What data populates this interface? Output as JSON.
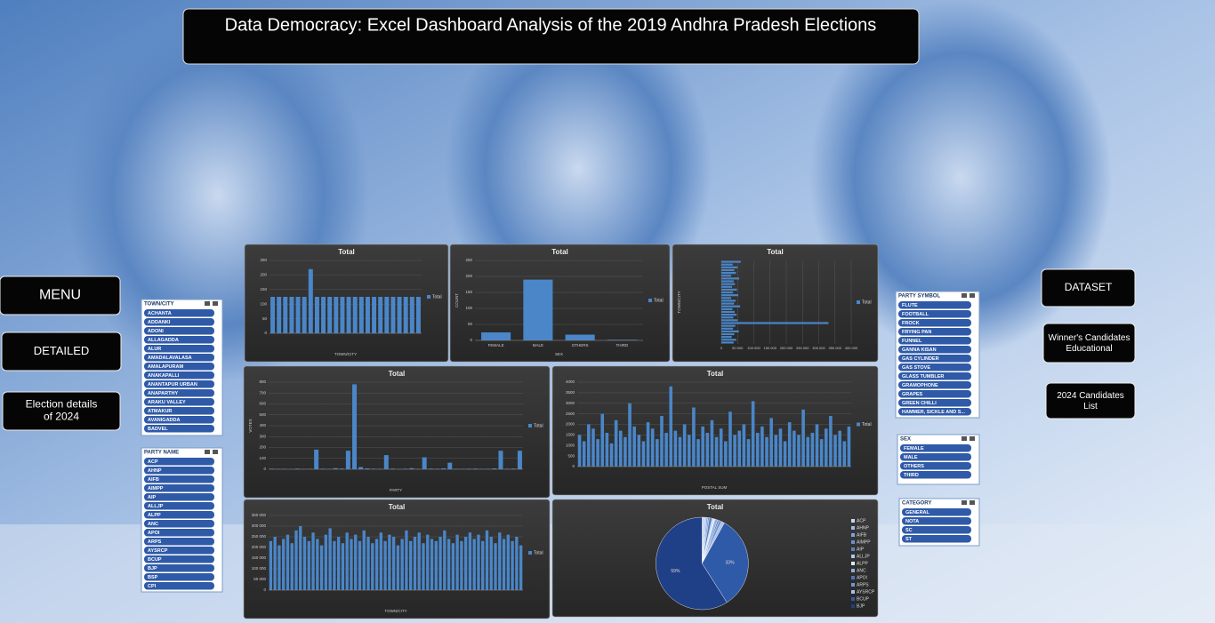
{
  "header": {
    "title": "Data Democracy: Excel Dashboard Analysis of the 2019 Andhra Pradesh Elections"
  },
  "buttons": [
    {
      "label": "MENU"
    },
    {
      "label": "DETAILED"
    },
    {
      "label": "Election details of 2024"
    },
    {
      "label": "DATASET"
    },
    {
      "label": "Winner's Candidates Educational"
    },
    {
      "label": "2024 Candidates List"
    }
  ],
  "slicers": [
    {
      "title": "TOWN/CITY",
      "items": [
        "ACHANTA",
        "ADDANKI",
        "ADONI",
        "ALLAGADDA",
        "ALUR",
        "AMADALAVALASA",
        "AMALAPURAM",
        "ANAKAPALLI",
        "ANANTAPUR URBAN",
        "ANAPARTHY",
        "ARAKU VALLEY",
        "ATMAKUR",
        "AVANIGADDA",
        "BADVEL"
      ]
    },
    {
      "title": "PARTY NAME",
      "items": [
        "ACP",
        "AHNP",
        "AIFB",
        "AIMPP",
        "AIP",
        "ALLJP",
        "ALPP",
        "ANC",
        "APOI",
        "ARPS",
        "AYSRCP",
        "BCUP",
        "BJP",
        "BSP",
        "CPI"
      ]
    },
    {
      "title": "PARTY SYMBOL",
      "items": [
        "FLUTE",
        "FOOTBALL",
        "FROCK",
        "FRYING PAN",
        "FUNNEL",
        "GANNA KISAN",
        "GAS CYLINDER",
        "GAS STOVE",
        "GLASS TUMBLER",
        "GRAMOPHONE",
        "GRAPES",
        "GREEN CHILLI",
        "HAMMER, SICKLE AND S..."
      ]
    },
    {
      "title": "SEX",
      "items": [
        "FEMALE",
        "MALE",
        "OTHERS",
        "THIRD"
      ]
    },
    {
      "title": "CATEGORY",
      "items": [
        "GENERAL",
        "NOTA",
        "SC",
        "ST"
      ]
    }
  ],
  "chart_data": [
    {
      "type": "bar",
      "title": "Total",
      "xlabel": "TOWN/CITY",
      "series": [
        {
          "name": "Total",
          "color": "#4a86c8",
          "values": [
            125,
            125,
            125,
            125,
            125,
            125,
            220,
            125,
            125,
            125,
            125,
            125,
            125,
            125,
            125,
            125,
            125,
            125,
            125,
            125,
            125,
            125,
            125,
            125
          ]
        }
      ],
      "ylim": [
        0,
        250
      ],
      "yticks": [
        0,
        50,
        100,
        150,
        200,
        250
      ],
      "grid": true
    },
    {
      "type": "bar",
      "title": "Total",
      "xlabel": "SEX",
      "ylabel": "COUNT",
      "categories": [
        "FEMALE",
        "MALE",
        "OTHERS",
        "THIRD"
      ],
      "series": [
        {
          "name": "Total",
          "color": "#4a86c8",
          "values": [
            25,
            190,
            18,
            2
          ]
        }
      ],
      "ylim": [
        0,
        250
      ],
      "yticks": [
        0,
        50,
        100,
        150,
        200,
        250
      ],
      "grid": true
    },
    {
      "type": "hbar",
      "title": "Total",
      "ylabel": "TOWN/CITY",
      "series": [
        {
          "name": "Total",
          "color": "#4a86c8",
          "values": [
            60000,
            35000,
            50000,
            40000,
            45000,
            30000,
            55000,
            38000,
            42000,
            33000,
            48000,
            36000,
            52000,
            30000,
            44000,
            39000,
            58000,
            34000,
            41000,
            47000,
            37000,
            50000,
            330000,
            43000,
            36000,
            54000,
            40000,
            32000,
            46000,
            38000
          ]
        }
      ],
      "xlim": [
        0,
        400000
      ],
      "xticks": [
        0,
        {
          "value": 50000,
          "label": "50 000"
        },
        {
          "value": 100000,
          "label": "100 000"
        },
        {
          "value": 150000,
          "label": "150 000"
        },
        {
          "value": 200000,
          "label": "200 000"
        },
        {
          "value": 250000,
          "label": "250 000"
        },
        {
          "value": 300000,
          "label": "300 000"
        },
        {
          "value": 350000,
          "label": "350 000"
        },
        {
          "value": 400000,
          "label": "400 000"
        }
      ],
      "grid": true
    },
    {
      "type": "bar",
      "title": "Total",
      "xlabel": "PARTY",
      "ylabel": "VOTES",
      "series": [
        {
          "name": "Total",
          "color": "#4a86c8",
          "values": [
            5,
            3,
            4,
            2,
            6,
            3,
            4,
            180,
            5,
            3,
            10,
            6,
            170,
            780,
            20,
            8,
            5,
            4,
            130,
            6,
            3,
            5,
            10,
            4,
            110,
            6,
            5,
            8,
            60,
            4,
            3,
            5,
            6,
            3,
            4,
            8,
            170,
            5,
            6,
            170
          ]
        }
      ],
      "ylim": [
        0,
        800
      ],
      "yticks": [
        0,
        100,
        200,
        300,
        400,
        500,
        600,
        700,
        800
      ],
      "grid": true
    },
    {
      "type": "bar",
      "title": "Total",
      "xlabel": "POSTAL SUM",
      "series": [
        {
          "name": "Total",
          "color": "#4a86c8",
          "values": [
            1500,
            1200,
            2000,
            1800,
            1300,
            2500,
            1600,
            1100,
            2200,
            1700,
            1400,
            3000,
            1900,
            1500,
            1200,
            2100,
            1800,
            1300,
            2400,
            1600,
            3800,
            1700,
            1400,
            2000,
            1500,
            2800,
            1300,
            1900,
            1600,
            2200,
            1400,
            1800,
            1200,
            2600,
            1500,
            1700,
            2000,
            1300,
            3100,
            1600,
            1900,
            1400,
            2300,
            1500,
            1800,
            1200,
            2100,
            1700,
            1500,
            2700,
            1400,
            1600,
            2000,
            1300,
            1800,
            2400,
            1500,
            1700,
            1200,
            1900
          ]
        }
      ],
      "ylim": [
        0,
        4000
      ],
      "yticks": [
        0,
        500,
        1000,
        1500,
        2000,
        2500,
        3000,
        3500,
        4000
      ],
      "grid": true
    },
    {
      "type": "bar",
      "title": "Total",
      "xlabel": "TOWN/CITY",
      "series": [
        {
          "name": "Total",
          "color": "#4a86c8",
          "values": [
            230000,
            250000,
            210000,
            240000,
            260000,
            220000,
            280000,
            300000,
            250000,
            230000,
            270000,
            240000,
            210000,
            260000,
            290000,
            230000,
            250000,
            220000,
            270000,
            240000,
            260000,
            230000,
            280000,
            250000,
            220000,
            240000,
            270000,
            230000,
            260000,
            250000,
            210000,
            240000,
            280000,
            230000,
            250000,
            270000,
            220000,
            260000,
            240000,
            230000,
            250000,
            280000,
            240000,
            220000,
            260000,
            230000,
            250000,
            270000,
            240000,
            260000,
            230000,
            280000,
            250000,
            220000,
            270000,
            240000,
            260000,
            230000,
            250000,
            210000
          ]
        }
      ],
      "ylim": [
        0,
        350000
      ],
      "yticks": [
        0,
        {
          "value": 50000,
          "label": "50 000"
        },
        {
          "value": 100000,
          "label": "100 000"
        },
        {
          "value": 150000,
          "label": "150 000"
        },
        {
          "value": 200000,
          "label": "200 000"
        },
        {
          "value": 250000,
          "label": "250 000"
        },
        {
          "value": 300000,
          "label": "300 000"
        },
        {
          "value": 350000,
          "label": "350 000"
        }
      ],
      "grid": true
    },
    {
      "type": "pie",
      "title": "Total",
      "categories": [
        "ACP",
        "AHNP",
        "AIFB",
        "AIMPP",
        "AIP",
        "ALLJP",
        "ALPP",
        "ANC",
        "APOI",
        "ARPS",
        "AYSRCP",
        "BCUP",
        "BJP"
      ],
      "values": [
        1,
        0.5,
        0.5,
        0.5,
        1,
        0.5,
        0.5,
        1,
        0.5,
        1,
        1,
        33,
        59
      ],
      "value_labels": [
        null,
        null,
        null,
        null,
        null,
        null,
        null,
        null,
        null,
        null,
        null,
        "33%",
        "59%"
      ],
      "colors": [
        "#c8d8f0",
        "#9fbbe6",
        "#7fa3dc",
        "#6a8fd0",
        "#5a80c6",
        "#b0c8ea",
        "#dde8f7",
        "#8fb0e0",
        "#4e74bb",
        "#7595d3",
        "#a8c2ea",
        "#2f5aa8",
        "#1f3f86"
      ]
    }
  ]
}
